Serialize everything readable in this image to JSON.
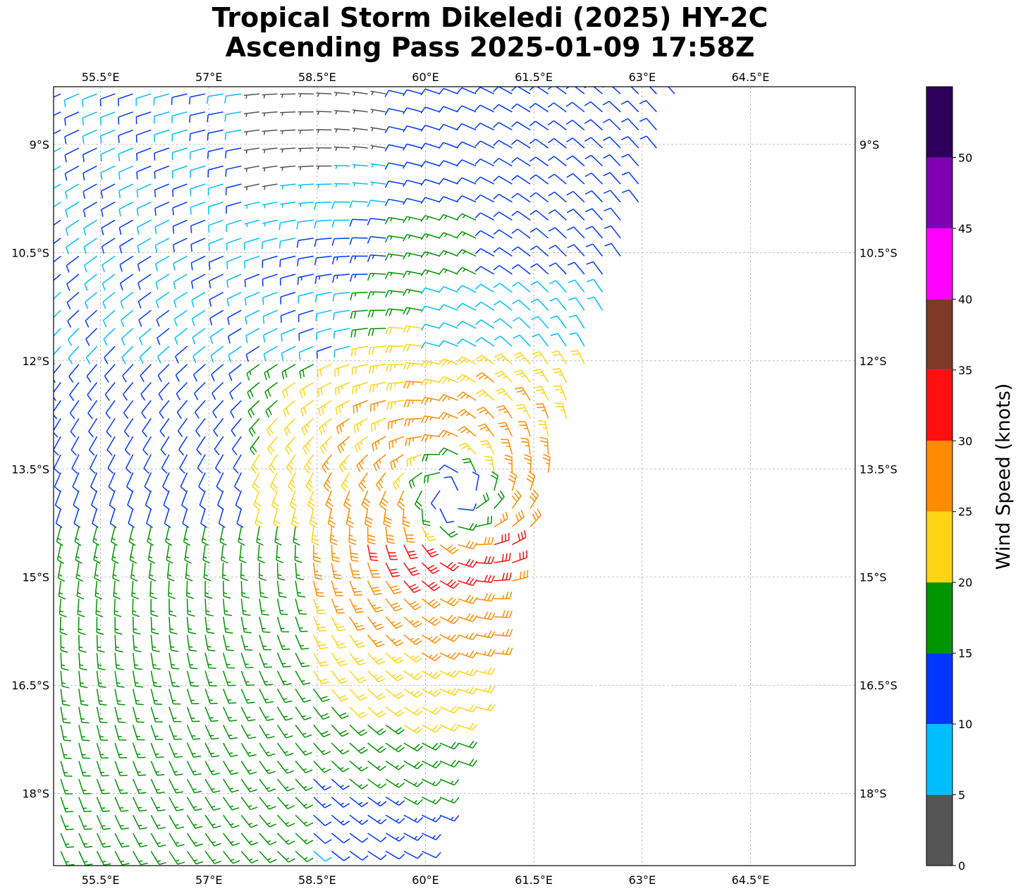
{
  "title": {
    "line1": "Tropical Storm Dikeledi (2025) HY-2C",
    "line2": "Ascending Pass 2025-01-09 17:58Z"
  },
  "map": {
    "lon_range": [
      54.85,
      65.95
    ],
    "lat_range": [
      -19.0,
      -8.2
    ],
    "lon_ticks": [
      55.5,
      57,
      58.5,
      60,
      61.5,
      63,
      64.5
    ],
    "lon_tick_labels": [
      "55.5°E",
      "57°E",
      "58.5°E",
      "60°E",
      "61.5°E",
      "63°E",
      "64.5°E"
    ],
    "lat_ticks": [
      -9,
      -10.5,
      -12,
      -13.5,
      -15,
      -16.5,
      -18
    ],
    "lat_tick_labels": [
      "9°S",
      "10.5°S",
      "12°S",
      "13.5°S",
      "15°S",
      "16.5°S",
      "18°S"
    ],
    "grid": true,
    "storm_center": {
      "lon": 60.4,
      "lat": -13.85
    },
    "swath_east_edge_lon_top": 63.5,
    "swath_east_edge_lon_bottom": 60.0
  },
  "colorbar": {
    "label": "Wind Speed (knots)",
    "ticks": [
      "0",
      "5",
      "10",
      "15",
      "20",
      "25",
      "30",
      "35",
      "40",
      "45",
      "50"
    ],
    "bins": [
      {
        "min": 0,
        "max": 5,
        "color": "#555555"
      },
      {
        "min": 5,
        "max": 10,
        "color": "#00bfff"
      },
      {
        "min": 10,
        "max": 15,
        "color": "#0037ff"
      },
      {
        "min": 15,
        "max": 20,
        "color": "#009400"
      },
      {
        "min": 20,
        "max": 25,
        "color": "#ffd414"
      },
      {
        "min": 25,
        "max": 30,
        "color": "#ff8c00"
      },
      {
        "min": 30,
        "max": 35,
        "color": "#ff0f0f"
      },
      {
        "min": 35,
        "max": 40,
        "color": "#7f3a28"
      },
      {
        "min": 40,
        "max": 45,
        "color": "#ff00ff"
      },
      {
        "min": 45,
        "max": 50,
        "color": "#7f00b3"
      },
      {
        "min": 50,
        "max": 55,
        "color": "#2d005c"
      }
    ]
  }
}
